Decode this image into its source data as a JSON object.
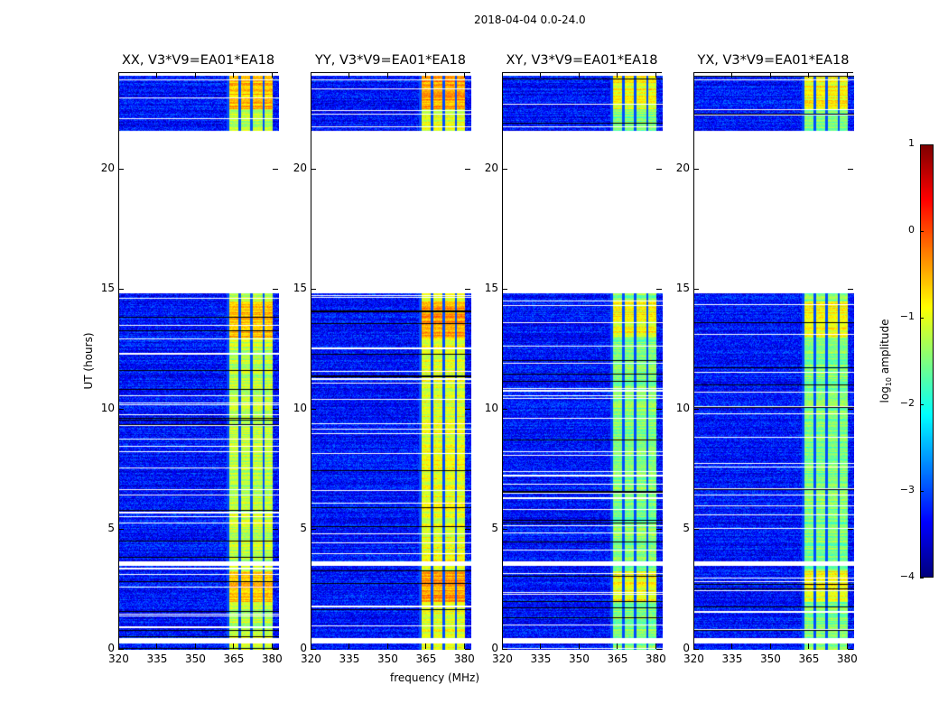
{
  "chart_data": {
    "type": "heatmap",
    "suptitle": "2018-04-04 0.0-24.0",
    "xlabel": "frequency (MHz)",
    "ylabel": "UT (hours)",
    "xlim": [
      320,
      382.5
    ],
    "ylim": [
      0,
      24
    ],
    "xticks": [
      "320",
      "335",
      "350",
      "365",
      "380"
    ],
    "xtick_values": [
      320,
      335,
      350,
      365,
      380
    ],
    "yticks": [
      "0",
      "5",
      "10",
      "15",
      "20"
    ],
    "ytick_values": [
      0,
      5,
      10,
      15,
      20
    ],
    "panels": [
      {
        "title": "XX, V3*V9=EA01*EA18",
        "band_level": -1.2
      },
      {
        "title": "YY, V3*V9=EA01*EA18",
        "band_level": -1.0
      },
      {
        "title": "XY, V3*V9=EA01*EA18",
        "band_level": -1.5
      },
      {
        "title": "YX, V3*V9=EA01*EA18",
        "band_level": -1.5
      }
    ],
    "data_time_ranges": [
      [
        0,
        0.3
      ],
      [
        0.5,
        3.5
      ],
      [
        3.7,
        14.85
      ],
      [
        21.6,
        23.9
      ]
    ],
    "bright_band_mhz": [
      362,
      380
    ],
    "background_level": -3.3,
    "colorbar": {
      "label": "log10 amplitude",
      "label_main": "log",
      "label_sub": "10",
      "label_rest": " amplitude",
      "colormap": "jet",
      "range": [
        -4,
        1
      ],
      "ticks": [
        "1",
        "0",
        "−1",
        "−2",
        "−3",
        "−4"
      ],
      "tick_values": [
        1,
        0,
        -1,
        -2,
        -3,
        -4
      ]
    }
  }
}
